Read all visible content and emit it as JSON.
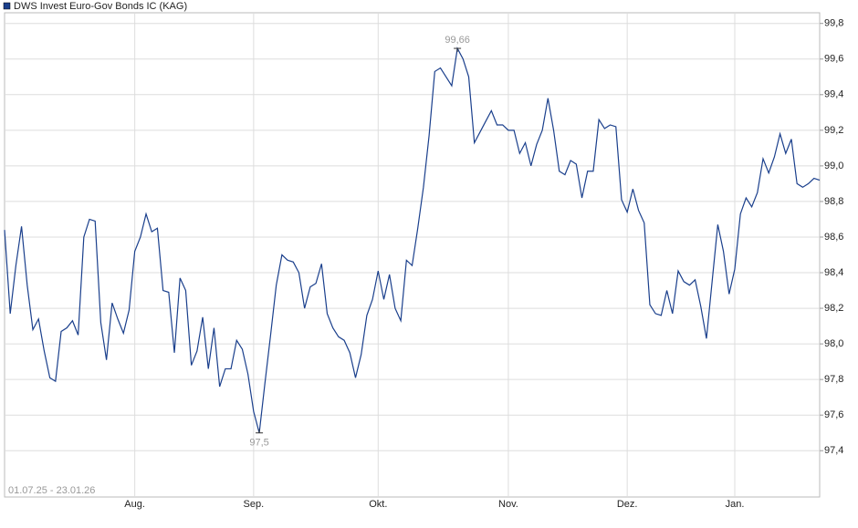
{
  "chart_data": {
    "type": "line",
    "title": "DWS Invest Euro-Gov Bonds IC (KAG)",
    "subtitle": "01.07.25 - 23.01.26",
    "categories": [
      null,
      null,
      null,
      null,
      null,
      null,
      null,
      null,
      null,
      null,
      null,
      null,
      null,
      null,
      null,
      null,
      null,
      null,
      null,
      null,
      null,
      null,
      null,
      "Aug.",
      null,
      null,
      null,
      null,
      null,
      null,
      null,
      null,
      null,
      null,
      null,
      null,
      null,
      null,
      null,
      null,
      null,
      null,
      null,
      null,
      "Sep.",
      null,
      null,
      null,
      null,
      null,
      null,
      null,
      null,
      null,
      null,
      null,
      null,
      null,
      null,
      null,
      null,
      null,
      null,
      null,
      null,
      null,
      "Okt.",
      null,
      null,
      null,
      null,
      null,
      null,
      null,
      null,
      null,
      null,
      null,
      null,
      null,
      null,
      null,
      null,
      null,
      null,
      null,
      null,
      null,
      null,
      "Nov.",
      null,
      null,
      null,
      null,
      null,
      null,
      null,
      null,
      null,
      null,
      null,
      null,
      null,
      null,
      null,
      null,
      null,
      null,
      null,
      null,
      "Dez.",
      null,
      null,
      null,
      null,
      null,
      null,
      null,
      null,
      null,
      null,
      null,
      null,
      null,
      null,
      null,
      null,
      null,
      null,
      "Jan.",
      null,
      null,
      null,
      null,
      null,
      null,
      null,
      null,
      null,
      null,
      null,
      null,
      null,
      null,
      null
    ],
    "series": [
      {
        "name": "DWS Invest Euro-Gov Bonds IC (KAG)",
        "color": "#1a3f8c",
        "values": [
          98.64,
          98.17,
          98.44,
          98.66,
          98.33,
          98.08,
          98.14,
          97.96,
          97.81,
          97.79,
          98.07,
          98.09,
          98.13,
          98.05,
          98.6,
          98.7,
          98.69,
          98.12,
          97.91,
          98.23,
          98.14,
          98.06,
          98.19,
          98.52,
          98.6,
          98.73,
          98.63,
          98.65,
          98.3,
          98.29,
          97.95,
          98.37,
          98.3,
          97.88,
          97.96,
          98.15,
          97.86,
          98.09,
          97.76,
          97.86,
          97.86,
          98.02,
          97.97,
          97.83,
          97.62,
          97.5,
          97.78,
          98.05,
          98.33,
          98.5,
          98.47,
          98.46,
          98.4,
          98.2,
          98.32,
          98.34,
          98.45,
          98.17,
          98.09,
          98.04,
          98.02,
          97.95,
          97.81,
          97.94,
          98.16,
          98.25,
          98.41,
          98.25,
          98.39,
          98.2,
          98.13,
          98.47,
          98.44,
          98.65,
          98.88,
          99.17,
          99.53,
          99.55,
          99.5,
          99.45,
          99.66,
          99.6,
          99.5,
          99.13,
          99.19,
          99.25,
          99.31,
          99.23,
          99.23,
          99.2,
          99.2,
          99.07,
          99.13,
          99.0,
          99.12,
          99.2,
          99.38,
          99.2,
          98.97,
          98.95,
          99.03,
          99.01,
          98.82,
          98.97,
          98.97,
          99.26,
          99.21,
          99.23,
          99.22,
          98.81,
          98.74,
          98.87,
          98.75,
          98.68,
          98.22,
          98.17,
          98.16,
          98.3,
          98.17,
          98.41,
          98.35,
          98.33,
          98.36,
          98.21,
          98.03,
          98.35,
          98.67,
          98.52,
          98.28,
          98.42,
          98.73,
          98.82,
          98.77,
          98.85,
          99.04,
          98.96,
          99.05,
          99.18,
          99.07,
          99.15,
          98.9,
          98.88,
          98.9,
          98.93,
          98.92
        ]
      }
    ],
    "annotations": [
      {
        "index": 80,
        "label": "99,66"
      },
      {
        "index": 45,
        "label": "97,5"
      }
    ],
    "ylim": [
      97.14,
      99.86
    ],
    "yticks": [
      {
        "value": 97.4,
        "label": "97,4"
      },
      {
        "value": 97.6,
        "label": "97,6"
      },
      {
        "value": 97.8,
        "label": "97,8"
      },
      {
        "value": 98.0,
        "label": "98,0"
      },
      {
        "value": 98.2,
        "label": "98,2"
      },
      {
        "value": 98.4,
        "label": "98,4"
      },
      {
        "value": 98.6,
        "label": "98,6"
      },
      {
        "value": 98.8,
        "label": "98,8"
      },
      {
        "value": 99.0,
        "label": "99,0"
      },
      {
        "value": 99.2,
        "label": "99,2"
      },
      {
        "value": 99.4,
        "label": "99,4"
      },
      {
        "value": 99.6,
        "label": "99,6"
      },
      {
        "value": 99.8,
        "label": "99,8"
      }
    ],
    "grid": true
  }
}
